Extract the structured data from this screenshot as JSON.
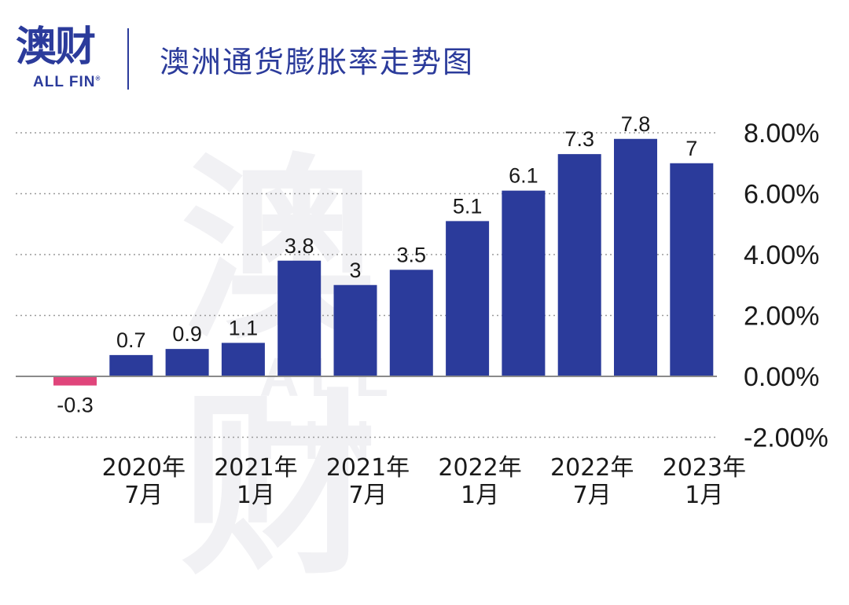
{
  "brand": {
    "logo_cn": "澳财",
    "logo_en": "ALL FIN",
    "logo_mark": "®"
  },
  "header": {
    "title": "澳洲通货膨胀率走势图"
  },
  "colors": {
    "positive": "#2b3b9b",
    "negative": "#e0457b",
    "grid": "#9a9a9a"
  },
  "chart_data": {
    "type": "bar",
    "title": "澳洲通货膨胀率走势图",
    "xlabel": "",
    "ylabel": "",
    "ylim": [
      -2,
      8
    ],
    "y_ticks": [
      8,
      6,
      4,
      2,
      0,
      -2
    ],
    "y_tick_labels": [
      "8.00%",
      "6.00%",
      "4.00%",
      "2.00%",
      "0.00%",
      "-2.00%"
    ],
    "grid": "dotted horizontal",
    "y_axis_side": "right",
    "values": [
      -0.3,
      0.7,
      0.9,
      1.1,
      3.8,
      3,
      3.5,
      5.1,
      6.1,
      7.3,
      7.8,
      7
    ],
    "data_labels": [
      "-0.3",
      "0.7",
      "0.9",
      "1.1",
      "3.8",
      "3",
      "3.5",
      "5.1",
      "6.1",
      "7.3",
      "7.8",
      "7"
    ],
    "x_tick_labels": [
      {
        "bar_index": 1,
        "line1": "2020年",
        "line2": "7月"
      },
      {
        "bar_index": 3,
        "line1": "2021年",
        "line2": "1月"
      },
      {
        "bar_index": 5,
        "line1": "2021年",
        "line2": "7月"
      },
      {
        "bar_index": 7,
        "line1": "2022年",
        "line2": "1月"
      },
      {
        "bar_index": 9,
        "line1": "2022年",
        "line2": "7月"
      },
      {
        "bar_index": 11,
        "line1": "2023年",
        "line2": "1月"
      }
    ]
  }
}
